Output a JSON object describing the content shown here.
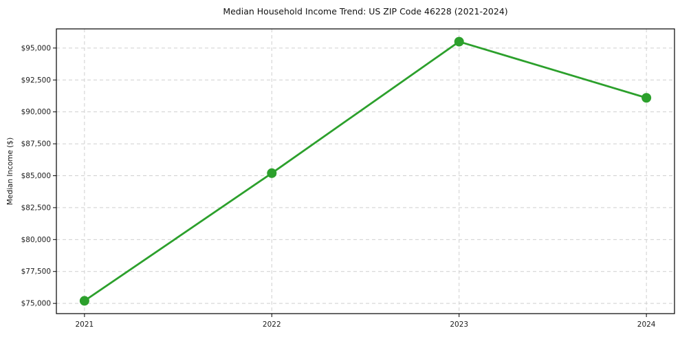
{
  "figure": {
    "title": "Median Household Income Trend: US ZIP Code 46228 (2021-2024)"
  },
  "chart_data": {
    "type": "line",
    "title": "Median Household Income Trend: US ZIP Code 46228 (2021-2024)",
    "xlabel": "",
    "ylabel": "Median Income ($)",
    "x": [
      2021,
      2022,
      2023,
      2024
    ],
    "values": [
      75200,
      85200,
      95500,
      91100
    ],
    "xlim": [
      2020.85,
      2024.15
    ],
    "ylim": [
      74200,
      96500
    ],
    "yticks": [
      {
        "value": 75000,
        "label": "$75,000"
      },
      {
        "value": 77500,
        "label": "$77,500"
      },
      {
        "value": 80000,
        "label": "$80,000"
      },
      {
        "value": 82500,
        "label": "$82,500"
      },
      {
        "value": 85000,
        "label": "$85,000"
      },
      {
        "value": 87500,
        "label": "$87,500"
      },
      {
        "value": 90000,
        "label": "$90,000"
      },
      {
        "value": 92500,
        "label": "$92,500"
      },
      {
        "value": 95000,
        "label": "$95,000"
      }
    ],
    "xticks": [
      {
        "value": 2021,
        "label": "2021"
      },
      {
        "value": 2022,
        "label": "2022"
      },
      {
        "value": 2023,
        "label": "2023"
      },
      {
        "value": 2024,
        "label": "2024"
      }
    ],
    "grid": true,
    "legend_position": "none",
    "line_color": "#2ca02c",
    "grid_color": "#cfcfcf",
    "axis_color": "#000000",
    "marker_radius": 7
  }
}
